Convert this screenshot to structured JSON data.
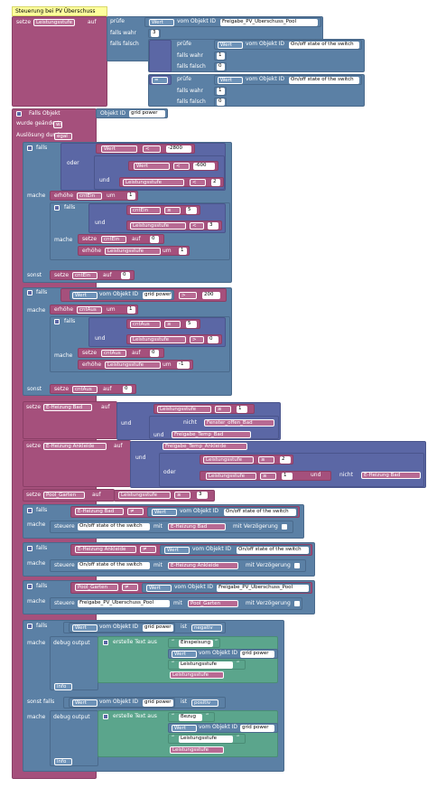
{
  "comment": "Steuerung bei PV Überschuss",
  "kw": {
    "setze": "setze",
    "auf": "auf",
    "pruefe": "prüfe",
    "falls_wahr": "falls wahr",
    "falls_falsch": "falls falsch",
    "falls": "falls",
    "mache": "mache",
    "sonst": "sonst",
    "sonst_falls": "sonst falls",
    "oder": "oder",
    "und": "und",
    "nicht": "nicht",
    "erhoehe": "erhöhe",
    "um": "um",
    "wert": "Wert",
    "vom_objekt_id": "vom Objekt ID",
    "steuere": "steuere",
    "mit": "mit",
    "mit_verzoegerung": "mit Verzögerung",
    "ist": "ist",
    "debug_output": "debug output",
    "erstelle_text_aus": "erstelle Text aus",
    "info": "info",
    "falls_objekt": "Falls Objekt",
    "wurde_geaendert": "wurde geändert",
    "ausloesung_durch": "Auslösung durch",
    "objekt_id": "Objekt ID",
    "egal": "egal"
  },
  "ops": {
    "lt": "<",
    "gt": ">",
    "ge": "≥",
    "ne": "≠",
    "eq": "="
  },
  "vars": {
    "leistungsstufe": "Leistungsstufe",
    "cntEin": "cntEin",
    "cntAus": "cntAus",
    "heizung_bad": "E-Heizung Bad",
    "heizung_ankleide": "E-Heizung Ankleide",
    "pool_garten": "Pool_Garten",
    "fenster_offen_bad": "Fenster_offen_Bad",
    "freigabe_temp_bad": "Freigabe_Temp_Bad",
    "freigabe_temp_ankleide": "Freigabe_Temp_Ankleide"
  },
  "objects": {
    "freigabe_pv_pool": "Freigabe_PV_Überschuss_Pool",
    "onoff": "On/off state of the switch",
    "grid_power": "grid power"
  },
  "nums": {
    "n3": "3",
    "n1": "1",
    "n0": "0",
    "m2800": "-2800",
    "m600": "-600",
    "n2": "2",
    "n5": "5",
    "n200": "200",
    "m1": "-1"
  },
  "states": {
    "negativ": "negativ",
    "positiv": "positiv"
  },
  "texts": {
    "einspeisung": "Einspeisung",
    "bezug": "Bezug"
  },
  "quote_open": "“",
  "quote_close": "”"
}
